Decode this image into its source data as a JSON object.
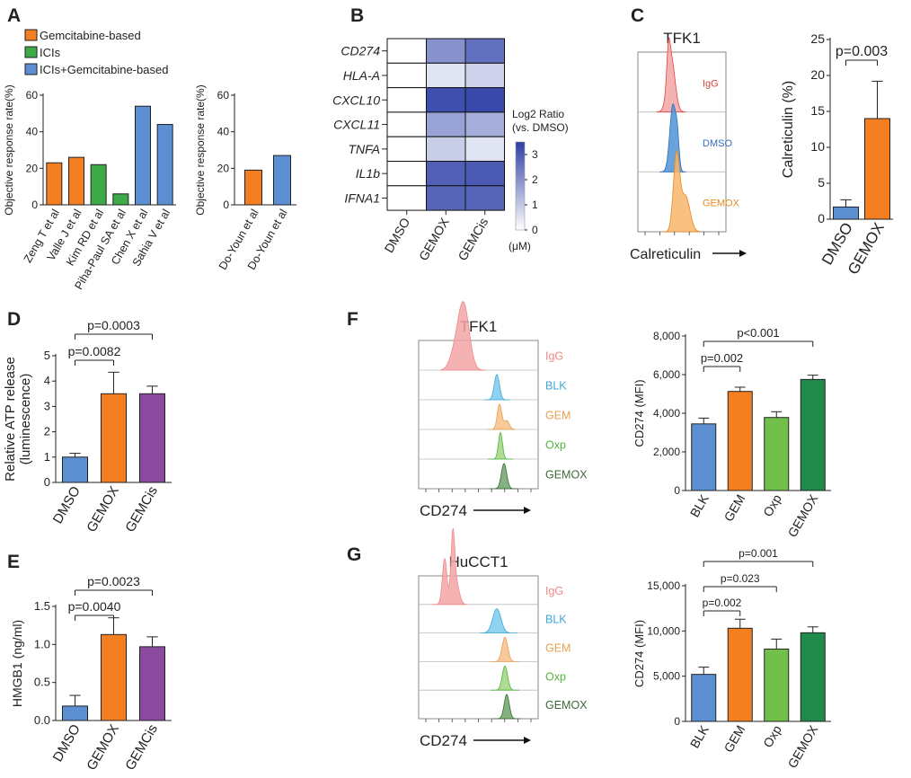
{
  "panel_letters": [
    "A",
    "B",
    "C",
    "D",
    "E",
    "F",
    "G"
  ],
  "colors": {
    "orange": "#f47f20",
    "green": "#3daa48",
    "blue": "#5b8fd1",
    "purple": "#8b4a9e",
    "lightgreen": "#72c04b",
    "darkgreen": "#1f8a4a",
    "red_label": "#e0433b",
    "heat_low": "#ffffff",
    "heat_high": "#2d3fa6"
  },
  "chart_data": [
    {
      "id": "A1",
      "type": "bar",
      "title": "",
      "ylabel": "Objective response rate(%)",
      "ylim": [
        0,
        60
      ],
      "yticks": [
        0,
        20,
        40,
        60
      ],
      "categories": [
        "Zeng T et al",
        "Valle J et al",
        "Kim RD et al",
        "Piha-Paul SA et al",
        "Chen X et al",
        "Sahia V et al"
      ],
      "values": [
        23,
        26,
        22,
        6,
        54,
        44
      ],
      "groups": [
        "Gemcitabine-based",
        "Gemcitabine-based",
        "ICIs",
        "ICIs",
        "ICIs+Gemcitabine-based",
        "ICIs+Gemcitabine-based"
      ],
      "legend": [
        {
          "label": "Gemcitabine-based",
          "color": "#f47f20"
        },
        {
          "label": "ICIs",
          "color": "#3daa48"
        },
        {
          "label": "ICIs+Gemcitabine-based",
          "color": "#5b8fd1"
        }
      ]
    },
    {
      "id": "A2",
      "type": "bar",
      "ylabel": "Objective response rate(%)",
      "ylim": [
        0,
        60
      ],
      "yticks": [
        0,
        20,
        40,
        60
      ],
      "categories": [
        "Do-Youn et al",
        "Do-Youn et al"
      ],
      "values": [
        19,
        27
      ],
      "groups": [
        "Gemcitabine-based",
        "ICIs+Gemcitabine-based"
      ]
    },
    {
      "id": "B",
      "type": "heatmap",
      "rows": [
        "CD274",
        "HLA-A",
        "CXCL10",
        "CXCL11",
        "TNFA",
        "IL1b",
        "IFNA1"
      ],
      "columns": [
        "DMSO",
        "GEMOX",
        "GEMCis"
      ],
      "values": [
        [
          0,
          2.0,
          2.6
        ],
        [
          0,
          0.5,
          0.8
        ],
        [
          0,
          3.2,
          3.3
        ],
        [
          0,
          1.7,
          1.5
        ],
        [
          0,
          0.9,
          0.5
        ],
        [
          0,
          2.9,
          3.0
        ],
        [
          0,
          2.8,
          2.8
        ]
      ],
      "colorbar": {
        "title": [
          "Log2 Ratio",
          "(vs. DMSO)"
        ],
        "ticks": [
          0,
          1,
          2,
          3
        ],
        "unit": "(μM)",
        "min": 0,
        "max": 3.5
      }
    },
    {
      "id": "C_flow",
      "type": "histogram-stack",
      "title": "TFK1",
      "xlabel": "Calreticulin",
      "tracks": [
        {
          "label": "IgG",
          "color": "#f2a5a5",
          "label_color": "#e0433b"
        },
        {
          "label": "DMSO",
          "color": "#4f93d6",
          "label_color": "#2f6fbf"
        },
        {
          "label": "GEMOX",
          "color": "#f7b56b",
          "label_color": "#e88a1e"
        }
      ]
    },
    {
      "id": "C_bar",
      "type": "bar",
      "ylabel": "Calreticulin (%)",
      "ylim": [
        0,
        25
      ],
      "yticks": [
        0,
        5,
        10,
        15,
        20,
        25
      ],
      "categories": [
        "DMSO",
        "GEMOX"
      ],
      "values": [
        1.7,
        14
      ],
      "errors": [
        1.0,
        5.2
      ],
      "bar_colors": [
        "#5b8fd1",
        "#f47f20"
      ],
      "comparisons": [
        {
          "from": 0,
          "to": 1,
          "label": "p=0.003"
        }
      ]
    },
    {
      "id": "D",
      "type": "bar",
      "ylabel": [
        "Relative ATP release",
        "(luminescence)"
      ],
      "ylim": [
        0,
        5
      ],
      "yticks": [
        0,
        1,
        2,
        3,
        4,
        5
      ],
      "categories": [
        "DMSO",
        "GEMOX",
        "GEMCis"
      ],
      "values": [
        1.0,
        3.5,
        3.5
      ],
      "errors": [
        0.15,
        0.85,
        0.3
      ],
      "bar_colors": [
        "#5b8fd1",
        "#f47f20",
        "#8b4a9e"
      ],
      "comparisons": [
        {
          "from": 0,
          "to": 1,
          "label": "p=0.0082"
        },
        {
          "from": 0,
          "to": 2,
          "label": "p=0.0003"
        }
      ]
    },
    {
      "id": "E",
      "type": "bar",
      "ylabel": "HMGB1 (ng/ml)",
      "ylim": [
        0,
        1.5
      ],
      "yticks": [
        0.0,
        0.5,
        1.0,
        1.5
      ],
      "ytick_labels": [
        "0.0",
        "0.5",
        "1.0",
        "1.5"
      ],
      "categories": [
        "DMSO",
        "GEMOX",
        "GEMCis"
      ],
      "values": [
        0.19,
        1.13,
        0.97
      ],
      "errors": [
        0.14,
        0.22,
        0.13
      ],
      "bar_colors": [
        "#5b8fd1",
        "#f47f20",
        "#8b4a9e"
      ],
      "comparisons": [
        {
          "from": 0,
          "to": 1,
          "label": "p=0.0040"
        },
        {
          "from": 0,
          "to": 2,
          "label": "p=0.0023"
        }
      ]
    },
    {
      "id": "F_flow",
      "type": "histogram-stack",
      "title": "TFK1",
      "xlabel": "CD274",
      "tracks": [
        {
          "label": "IgG",
          "color": "#f2a5a5",
          "label_color": "#f08a8a"
        },
        {
          "label": "BLK",
          "color": "#7ccbed",
          "label_color": "#3fa8d8"
        },
        {
          "label": "GEM",
          "color": "#f7c08a",
          "label_color": "#e8a050"
        },
        {
          "label": "Oxp",
          "color": "#9fd67f",
          "label_color": "#4fb33a"
        },
        {
          "label": "GEMOX",
          "color": "#6ea36a",
          "label_color": "#3b6b34"
        }
      ]
    },
    {
      "id": "F_bar",
      "type": "bar",
      "ylabel": "CD274 (MFI)",
      "ylim": [
        0,
        8000
      ],
      "yticks": [
        0,
        2000,
        4000,
        6000,
        8000
      ],
      "ytick_labels": [
        "0",
        "2,000",
        "4,000",
        "6,000",
        "8,000"
      ],
      "categories": [
        "BLK",
        "GEM",
        "Oxp",
        "GEMOX"
      ],
      "values": [
        3450,
        5130,
        3780,
        5750
      ],
      "errors": [
        300,
        220,
        300,
        220
      ],
      "bar_colors": [
        "#5b8fd1",
        "#f47f20",
        "#72c04b",
        "#1f8a4a"
      ],
      "comparisons": [
        {
          "from": 0,
          "to": 1,
          "label": "p=0.002"
        },
        {
          "from": 0,
          "to": 3,
          "label": "p<0.001"
        }
      ]
    },
    {
      "id": "G_flow",
      "type": "histogram-stack",
      "title": "HuCCT1",
      "xlabel": "CD274",
      "tracks": [
        {
          "label": "IgG",
          "color": "#f2a5a5",
          "label_color": "#f08a8a"
        },
        {
          "label": "BLK",
          "color": "#7ccbed",
          "label_color": "#3fa8d8"
        },
        {
          "label": "GEM",
          "color": "#f7c08a",
          "label_color": "#e8a050"
        },
        {
          "label": "Oxp",
          "color": "#9fd67f",
          "label_color": "#4fb33a"
        },
        {
          "label": "GEMOX",
          "color": "#6ea36a",
          "label_color": "#3b6b34"
        }
      ]
    },
    {
      "id": "G_bar",
      "type": "bar",
      "ylabel": "CD274 (MFI)",
      "ylim": [
        0,
        15000
      ],
      "yticks": [
        0,
        5000,
        10000,
        15000
      ],
      "ytick_labels": [
        "0",
        "5,000",
        "10,000",
        "15,000"
      ],
      "categories": [
        "BLK",
        "GEM",
        "Oxp",
        "GEMOX"
      ],
      "values": [
        5200,
        10300,
        8000,
        9800
      ],
      "errors": [
        800,
        1000,
        1100,
        650
      ],
      "bar_colors": [
        "#5b8fd1",
        "#f47f20",
        "#72c04b",
        "#1f8a4a"
      ],
      "comparisons": [
        {
          "from": 0,
          "to": 1,
          "label": "p=0.002"
        },
        {
          "from": 0,
          "to": 2,
          "label": "p=0.023"
        },
        {
          "from": 0,
          "to": 3,
          "label": "p=0.001"
        }
      ]
    }
  ]
}
